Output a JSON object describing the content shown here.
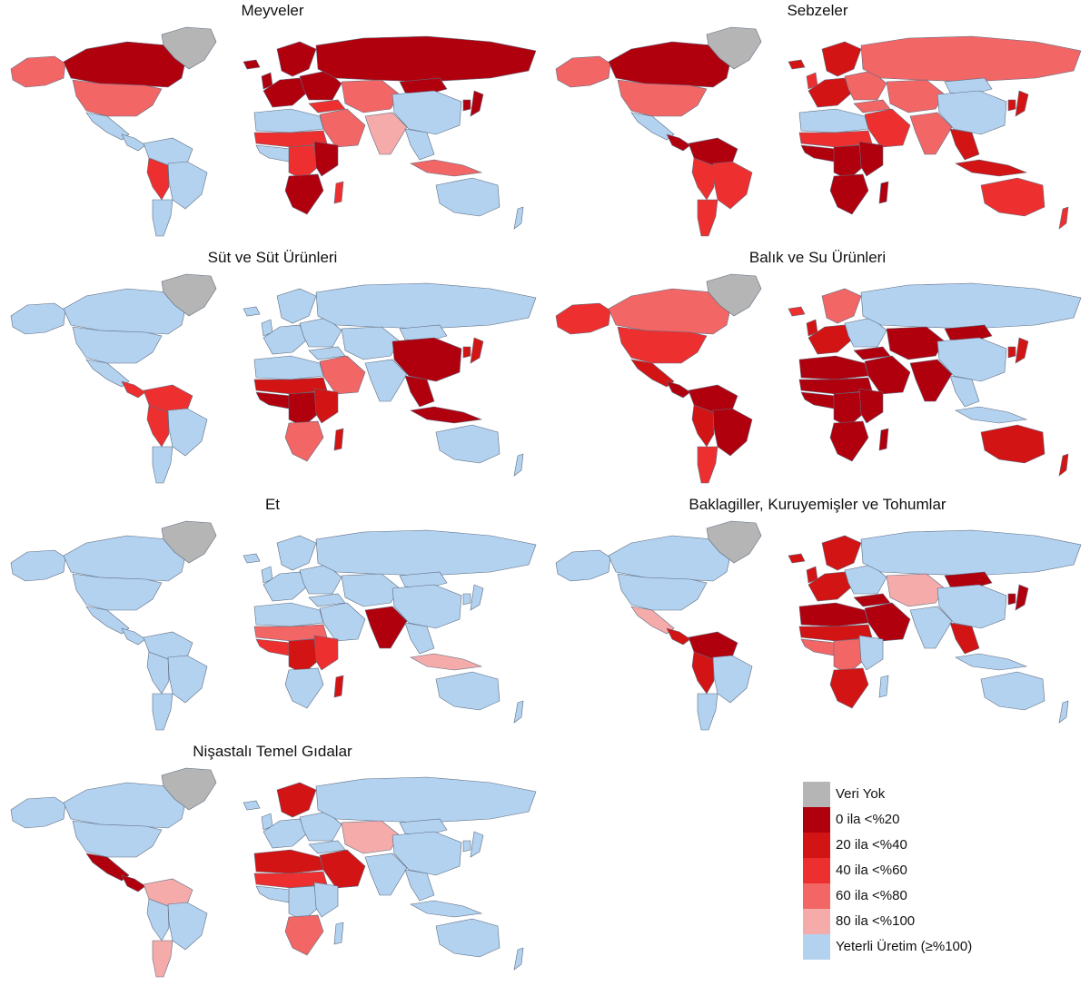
{
  "colors": {
    "no_data": "#b5b5b5",
    "c0": "#b0000e",
    "c1": "#d21414",
    "c2": "#ee2f2f",
    "c3": "#f26666",
    "c4": "#f6abab",
    "ok": "#b3d2f0",
    "border": "#5d6c80",
    "ocean": "#ffffff"
  },
  "panels": [
    {
      "title": "Meyveler",
      "regions": {
        "alaska": "c3",
        "canada": "c0",
        "greenland": "no_data",
        "usa": "c3",
        "mexico": "ok",
        "central_am": "ok",
        "south_am_north": "ok",
        "brazil": "ok",
        "south_am_mid": "c2",
        "patagonia": "ok",
        "w_europe": "c0",
        "e_europe": "c0",
        "russia": "c0",
        "turkey": "c2",
        "middle_east": "c3",
        "central_asia": "c3",
        "india": "c4",
        "china": "ok",
        "mongolia": "c0",
        "se_asia": "ok",
        "indonesia": "c3",
        "japan": "c0",
        "korea": "c0",
        "n_africa": "ok",
        "sahel": "c2",
        "w_africa": "ok",
        "central_africa": "c2",
        "e_africa": "c0",
        "s_africa": "c0",
        "madagascar": "c2",
        "australia": "ok",
        "nz": "ok",
        "iceland": "c0",
        "uk": "c0",
        "scandinavia": "c0"
      }
    },
    {
      "title": "Sebzeler",
      "regions": {
        "alaska": "c3",
        "canada": "c0",
        "greenland": "no_data",
        "usa": "c3",
        "mexico": "ok",
        "central_am": "c0",
        "south_am_north": "c0",
        "brazil": "c2",
        "south_am_mid": "c2",
        "patagonia": "c2",
        "w_europe": "c1",
        "e_europe": "c3",
        "russia": "c3",
        "turkey": "c3",
        "middle_east": "c2",
        "central_asia": "c3",
        "india": "c3",
        "china": "ok",
        "mongolia": "ok",
        "se_asia": "c1",
        "indonesia": "c1",
        "japan": "c1",
        "korea": "c1",
        "n_africa": "ok",
        "sahel": "c2",
        "w_africa": "c0",
        "central_africa": "c0",
        "e_africa": "c0",
        "s_africa": "c0",
        "madagascar": "c0",
        "australia": "c2",
        "nz": "c2",
        "iceland": "c1",
        "uk": "c2",
        "scandinavia": "c1"
      }
    },
    {
      "title": "Süt ve Süt Ürünleri",
      "regions": {
        "alaska": "ok",
        "canada": "ok",
        "greenland": "no_data",
        "usa": "ok",
        "mexico": "ok",
        "central_am": "c2",
        "south_am_north": "c2",
        "brazil": "ok",
        "south_am_mid": "c2",
        "patagonia": "ok",
        "w_europe": "ok",
        "e_europe": "ok",
        "russia": "ok",
        "turkey": "ok",
        "middle_east": "c3",
        "central_asia": "ok",
        "india": "ok",
        "china": "c0",
        "mongolia": "ok",
        "se_asia": "c0",
        "indonesia": "c0",
        "japan": "c1",
        "korea": "c1",
        "n_africa": "ok",
        "sahel": "c1",
        "w_africa": "c0",
        "central_africa": "c0",
        "e_africa": "c1",
        "s_africa": "c3",
        "madagascar": "c1",
        "australia": "ok",
        "nz": "ok",
        "iceland": "ok",
        "uk": "ok",
        "scandinavia": "ok"
      }
    },
    {
      "title": "Balık ve Su Ürünleri",
      "regions": {
        "alaska": "c2",
        "canada": "c3",
        "greenland": "no_data",
        "usa": "c2",
        "mexico": "c1",
        "central_am": "c0",
        "south_am_north": "c0",
        "brazil": "c0",
        "south_am_mid": "c1",
        "patagonia": "c2",
        "w_europe": "c1",
        "e_europe": "ok",
        "russia": "ok",
        "turkey": "c0",
        "middle_east": "c0",
        "central_asia": "c0",
        "india": "c0",
        "china": "ok",
        "mongolia": "c0",
        "se_asia": "ok",
        "indonesia": "ok",
        "japan": "c1",
        "korea": "c1",
        "n_africa": "c0",
        "sahel": "c0",
        "w_africa": "c0",
        "central_africa": "c0",
        "e_africa": "c0",
        "s_africa": "c0",
        "madagascar": "c0",
        "australia": "c1",
        "nz": "c1",
        "iceland": "c2",
        "uk": "c1",
        "scandinavia": "c3"
      }
    },
    {
      "title": "Et",
      "regions": {
        "alaska": "ok",
        "canada": "ok",
        "greenland": "no_data",
        "usa": "ok",
        "mexico": "ok",
        "central_am": "ok",
        "south_am_north": "ok",
        "brazil": "ok",
        "south_am_mid": "ok",
        "patagonia": "ok",
        "w_europe": "ok",
        "e_europe": "ok",
        "russia": "ok",
        "turkey": "ok",
        "middle_east": "ok",
        "central_asia": "ok",
        "india": "c0",
        "china": "ok",
        "mongolia": "ok",
        "se_asia": "ok",
        "indonesia": "c4",
        "japan": "ok",
        "korea": "ok",
        "n_africa": "ok",
        "sahel": "c3",
        "w_africa": "c2",
        "central_africa": "c1",
        "e_africa": "c2",
        "s_africa": "ok",
        "madagascar": "c1",
        "australia": "ok",
        "nz": "ok",
        "iceland": "ok",
        "uk": "ok",
        "scandinavia": "ok"
      }
    },
    {
      "title": "Baklagiller, Kuruyemişler ve Tohumlar",
      "regions": {
        "alaska": "ok",
        "canada": "ok",
        "greenland": "no_data",
        "usa": "ok",
        "mexico": "c4",
        "central_am": "c1",
        "south_am_north": "c0",
        "brazil": "ok",
        "south_am_mid": "c1",
        "patagonia": "ok",
        "w_europe": "c1",
        "e_europe": "ok",
        "russia": "ok",
        "turkey": "c0",
        "middle_east": "c0",
        "central_asia": "c4",
        "india": "ok",
        "china": "ok",
        "mongolia": "c0",
        "se_asia": "c1",
        "indonesia": "ok",
        "japan": "c0",
        "korea": "c0",
        "n_africa": "c0",
        "sahel": "c1",
        "w_africa": "c3",
        "central_africa": "c3",
        "e_africa": "ok",
        "s_africa": "c1",
        "madagascar": "ok",
        "australia": "ok",
        "nz": "ok",
        "iceland": "c1",
        "uk": "c1",
        "scandinavia": "c1"
      }
    },
    {
      "title": "Nişastalı Temel Gıdalar",
      "regions": {
        "alaska": "ok",
        "canada": "ok",
        "greenland": "no_data",
        "usa": "ok",
        "mexico": "c0",
        "central_am": "c0",
        "south_am_north": "c4",
        "brazil": "ok",
        "south_am_mid": "ok",
        "patagonia": "c4",
        "w_europe": "ok",
        "e_europe": "ok",
        "russia": "ok",
        "turkey": "ok",
        "middle_east": "c1",
        "central_asia": "c4",
        "india": "ok",
        "china": "ok",
        "mongolia": "ok",
        "se_asia": "ok",
        "indonesia": "ok",
        "japan": "ok",
        "korea": "ok",
        "n_africa": "c1",
        "sahel": "c2",
        "w_africa": "ok",
        "central_africa": "ok",
        "e_africa": "ok",
        "s_africa": "c3",
        "madagascar": "ok",
        "australia": "ok",
        "nz": "ok",
        "iceland": "ok",
        "uk": "ok",
        "scandinavia": "c1"
      }
    }
  ],
  "legend": [
    {
      "key": "no_data",
      "label": "Veri Yok"
    },
    {
      "key": "c0",
      "label": "0 ila <%20"
    },
    {
      "key": "c1",
      "label": "20 ila <%40"
    },
    {
      "key": "c2",
      "label": "40 ila <%60"
    },
    {
      "key": "c3",
      "label": "60 ila <%80"
    },
    {
      "key": "c4",
      "label": "80 ila <%100"
    },
    {
      "key": "ok",
      "label": "Yeterli Üretim (≥%100)"
    }
  ]
}
